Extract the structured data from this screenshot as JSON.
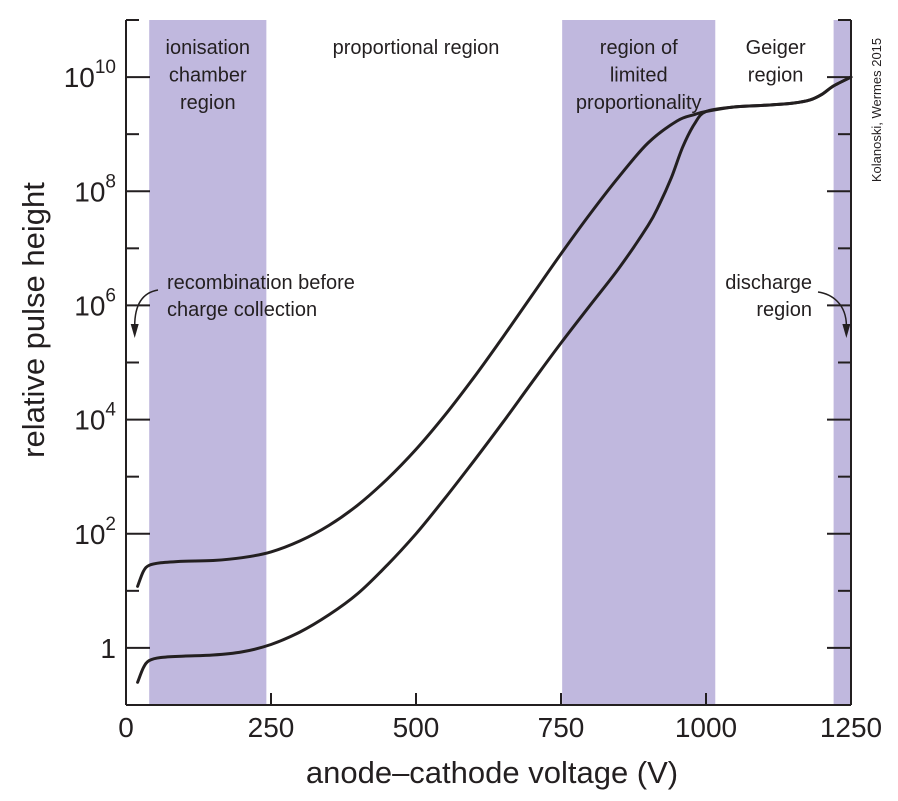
{
  "chart_data": {
    "type": "line",
    "xlabel": "anode–cathode voltage (V)",
    "ylabel": "relative pulse height",
    "xlim": [
      0,
      1250
    ],
    "ylim_log10": [
      -1,
      11
    ],
    "y_scale": "log",
    "x_ticks": [
      0,
      250,
      500,
      750,
      1000,
      1250
    ],
    "x_tick_labels": [
      "0",
      "250",
      "500",
      "750",
      "1000",
      "1250"
    ],
    "y_ticks": [
      {
        "value": 1,
        "label": "1",
        "exp": ""
      },
      {
        "value": 100,
        "label": "10",
        "exp": "2"
      },
      {
        "value": 10000,
        "label": "10",
        "exp": "4"
      },
      {
        "value": 1000000,
        "label": "10",
        "exp": "6"
      },
      {
        "value": 100000000,
        "label": "10",
        "exp": "8"
      },
      {
        "value": 10000000000,
        "label": "10",
        "exp": "10"
      }
    ],
    "bands": [
      {
        "from": 40,
        "to": 242,
        "lines": [
          "ionisation",
          "chamber",
          "region"
        ],
        "color": "#c0b8de"
      },
      {
        "from": 752,
        "to": 1016,
        "lines": [
          "region of",
          "limited",
          "proportionality"
        ],
        "color": "#c0b8de"
      },
      {
        "from": 1220,
        "to": 1250,
        "lines": [],
        "color": "#c0b8de"
      }
    ],
    "region_labels": [
      {
        "x": 500,
        "lines": [
          "proportional region"
        ]
      },
      {
        "x": 1120,
        "lines": [
          "Geiger",
          "region"
        ]
      }
    ],
    "annotations": [
      {
        "lines": [
          "recombination before",
          "charge collection"
        ],
        "arrow_x": 15
      },
      {
        "lines": [
          "discharge",
          "region"
        ],
        "arrow_x": 1242
      }
    ],
    "series": [
      {
        "points": [
          [
            20,
            12
          ],
          [
            30,
            22
          ],
          [
            40,
            28
          ],
          [
            60,
            31
          ],
          [
            100,
            33
          ],
          [
            150,
            34
          ],
          [
            200,
            38
          ],
          [
            250,
            48
          ],
          [
            300,
            75
          ],
          [
            350,
            140
          ],
          [
            400,
            320
          ],
          [
            450,
            900
          ],
          [
            500,
            3000
          ],
          [
            550,
            12000
          ],
          [
            600,
            55000
          ],
          [
            650,
            280000
          ],
          [
            700,
            1500000
          ],
          [
            750,
            8000000
          ],
          [
            800,
            40000000
          ],
          [
            850,
            180000000
          ],
          [
            900,
            700000000
          ],
          [
            950,
            1700000000
          ],
          [
            980,
            2200000000
          ],
          [
            1000,
            2500000000
          ],
          [
            1050,
            3000000000
          ],
          [
            1100,
            3200000000
          ],
          [
            1150,
            3500000000
          ],
          [
            1180,
            4000000000
          ],
          [
            1200,
            5000000000
          ],
          [
            1220,
            7000000000
          ],
          [
            1250,
            10000000000
          ]
        ]
      },
      {
        "points": [
          [
            20,
            0.25
          ],
          [
            30,
            0.45
          ],
          [
            40,
            0.6
          ],
          [
            60,
            0.68
          ],
          [
            100,
            0.72
          ],
          [
            150,
            0.75
          ],
          [
            200,
            0.85
          ],
          [
            250,
            1.15
          ],
          [
            300,
            1.9
          ],
          [
            350,
            3.8
          ],
          [
            400,
            9
          ],
          [
            450,
            28
          ],
          [
            500,
            100
          ],
          [
            550,
            420
          ],
          [
            600,
            1900
          ],
          [
            650,
            9000
          ],
          [
            700,
            45000
          ],
          [
            750,
            220000
          ],
          [
            800,
            1000000
          ],
          [
            850,
            4500000
          ],
          [
            900,
            25000000
          ],
          [
            920,
            60000000
          ],
          [
            940,
            170000000
          ],
          [
            960,
            600000000
          ],
          [
            980,
            1500000000
          ],
          [
            1000,
            2500000000
          ],
          [
            1050,
            3000000000
          ],
          [
            1100,
            3200000000
          ],
          [
            1150,
            3500000000
          ],
          [
            1180,
            4000000000
          ],
          [
            1200,
            5000000000
          ],
          [
            1220,
            7000000000
          ],
          [
            1250,
            10000000000
          ]
        ]
      }
    ],
    "colors": {
      "band": "#c0b8de",
      "line": "#231f20"
    }
  },
  "credit": "Kolanoski, Wermes 2015"
}
